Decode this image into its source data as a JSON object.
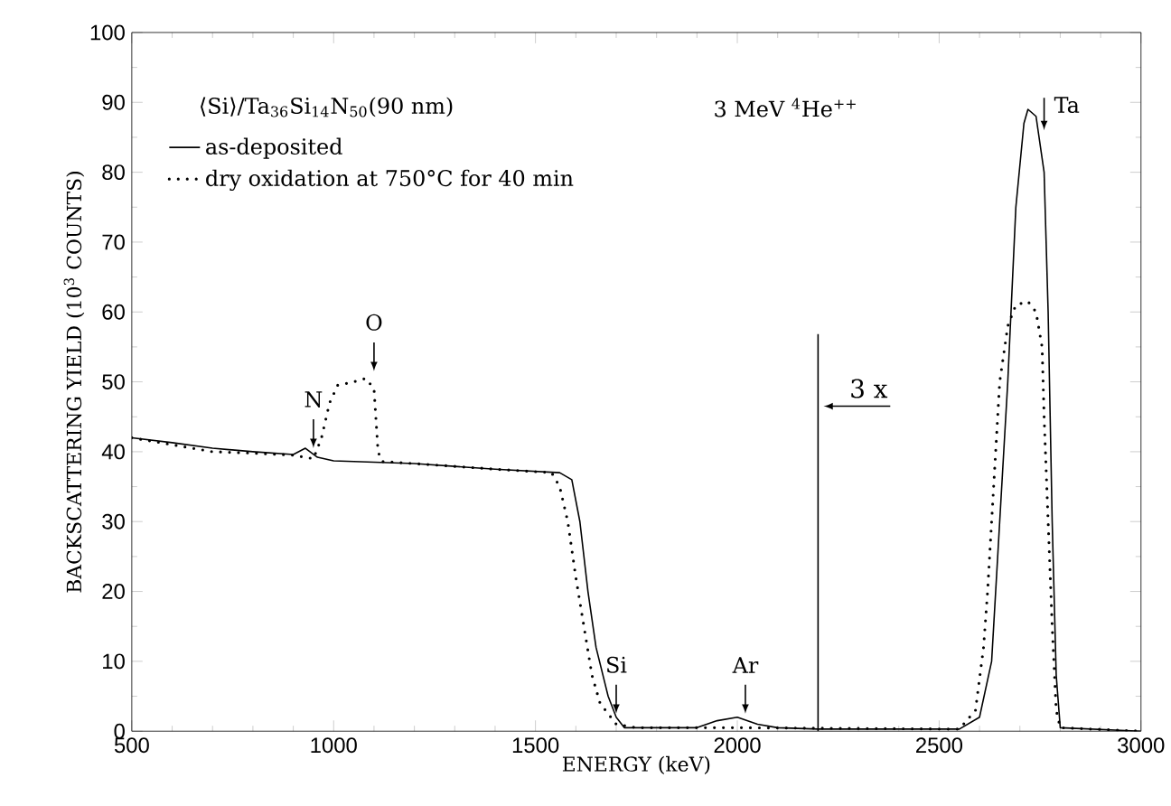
{
  "chart_data": {
    "type": "line",
    "xlabel": "ENERGY (keV)",
    "ylabel": "BACKSCATTERING YIELD  (10$^{3}$ COUNTS)",
    "xlim": [
      500,
      3000
    ],
    "ylim": [
      0,
      100
    ],
    "xticks": [
      500,
      1000,
      1500,
      2000,
      2500,
      3000
    ],
    "yticks": [
      0,
      10,
      20,
      30,
      40,
      50,
      60,
      70,
      80,
      90,
      100
    ],
    "legend": "top left",
    "marker": "none",
    "series": [
      {
        "name": "as-deposited",
        "color": "#000000",
        "line_style": "solid",
        "x": [
          500,
          600,
          700,
          800,
          900,
          930,
          960,
          1000,
          1200,
          1400,
          1560,
          1590,
          1610,
          1630,
          1650,
          1680,
          1700,
          1720,
          1900,
          1950,
          2000,
          2050,
          2100,
          2200,
          2550,
          2600,
          2630,
          2650,
          2670,
          2690,
          2710,
          2720,
          2740,
          2760,
          2770,
          2780,
          2790,
          2800,
          3000
        ],
        "values": [
          42,
          41.3,
          40.5,
          40,
          39.6,
          40.5,
          39.2,
          38.7,
          38.3,
          37.5,
          37,
          36,
          30,
          20,
          12,
          5,
          2,
          0.5,
          0.5,
          1.5,
          2,
          1,
          0.5,
          0.3,
          0.3,
          2,
          10,
          30,
          50,
          75,
          87,
          89,
          88,
          80,
          60,
          30,
          8,
          0.5,
          0
        ]
      },
      {
        "name": "dry oxidation at 750°C for 40 min",
        "color": "#000000",
        "line_style": "dotted",
        "x": [
          500,
          600,
          700,
          800,
          900,
          950,
          970,
          990,
          1010,
          1050,
          1080,
          1100,
          1110,
          1120,
          1200,
          1400,
          1540,
          1560,
          1580,
          1600,
          1620,
          1640,
          1660,
          1700,
          1750,
          2000,
          2550,
          2590,
          2610,
          2620,
          2635,
          2650,
          2670,
          2690,
          2720,
          2740,
          2755,
          2760,
          2770,
          2780,
          2790,
          2800,
          3000
        ],
        "values": [
          42,
          41,
          40,
          39.8,
          39.5,
          39,
          42,
          47,
          49.5,
          50,
          50.5,
          49,
          40,
          38.6,
          38.3,
          37.5,
          37,
          35,
          30,
          22,
          15,
          8,
          4,
          1,
          0.5,
          0.5,
          0.3,
          3,
          12,
          20,
          35,
          50,
          58,
          61,
          61.5,
          60,
          55,
          45,
          30,
          15,
          3,
          0.5,
          0
        ]
      }
    ],
    "ref_lines": [
      {
        "axis": "x",
        "value": 2200,
        "label": "3 x"
      }
    ],
    "annotations": [
      "⟨Si⟩/Ta$_{36}$Si$_{14}$N$_{50}$(90 nm)",
      "3 MeV $^{4}$He$^{++}$",
      {
        "text": "N",
        "x": 950,
        "y": 40
      },
      {
        "text": "O",
        "x": 1100,
        "y": 51
      },
      {
        "text": "Si",
        "x": 1700,
        "y": 2
      },
      {
        "text": "Ar",
        "x": 2020,
        "y": 2
      },
      {
        "text": "Ta",
        "x": 2760,
        "y": 86
      }
    ]
  }
}
